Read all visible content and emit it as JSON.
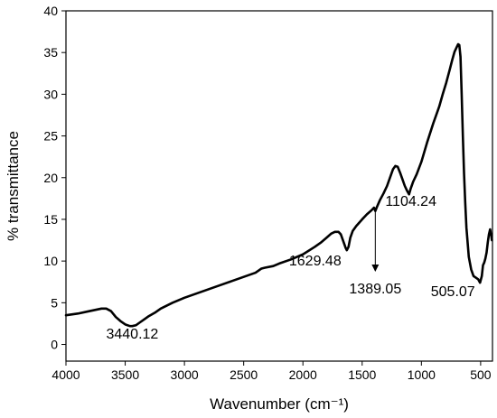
{
  "chart_data": {
    "type": "line",
    "xlabel": "Wavenumber (cm⁻¹)",
    "ylabel": "% transmittance",
    "xlim": [
      4000,
      400
    ],
    "ylim": [
      -2,
      40
    ],
    "x_reversed": true,
    "grid": false,
    "legend": "none",
    "xticks": [
      4000,
      3500,
      3000,
      2500,
      2000,
      1500,
      1000,
      500
    ],
    "yticks": [
      0,
      5,
      10,
      15,
      20,
      25,
      30,
      35,
      40
    ],
    "line_color": "#000000",
    "series": [
      {
        "points": [
          [
            4000,
            3.5
          ],
          [
            3900,
            3.7
          ],
          [
            3800,
            4.0
          ],
          [
            3700,
            4.3
          ],
          [
            3660,
            4.3
          ],
          [
            3620,
            4.0
          ],
          [
            3580,
            3.3
          ],
          [
            3540,
            2.8
          ],
          [
            3500,
            2.4
          ],
          [
            3460,
            2.2
          ],
          [
            3440,
            2.2
          ],
          [
            3410,
            2.3
          ],
          [
            3380,
            2.6
          ],
          [
            3340,
            3.0
          ],
          [
            3300,
            3.4
          ],
          [
            3250,
            3.8
          ],
          [
            3200,
            4.3
          ],
          [
            3100,
            5.0
          ],
          [
            3000,
            5.6
          ],
          [
            2900,
            6.1
          ],
          [
            2800,
            6.6
          ],
          [
            2700,
            7.1
          ],
          [
            2600,
            7.6
          ],
          [
            2500,
            8.1
          ],
          [
            2400,
            8.6
          ],
          [
            2370,
            8.9
          ],
          [
            2350,
            9.1
          ],
          [
            2320,
            9.2
          ],
          [
            2250,
            9.4
          ],
          [
            2200,
            9.7
          ],
          [
            2100,
            10.2
          ],
          [
            2000,
            10.8
          ],
          [
            1900,
            11.7
          ],
          [
            1850,
            12.2
          ],
          [
            1800,
            12.8
          ],
          [
            1760,
            13.3
          ],
          [
            1730,
            13.5
          ],
          [
            1700,
            13.5
          ],
          [
            1680,
            13.2
          ],
          [
            1660,
            12.4
          ],
          [
            1640,
            11.6
          ],
          [
            1629.48,
            11.3
          ],
          [
            1615,
            11.7
          ],
          [
            1600,
            12.8
          ],
          [
            1580,
            13.6
          ],
          [
            1550,
            14.2
          ],
          [
            1500,
            15.0
          ],
          [
            1460,
            15.6
          ],
          [
            1420,
            16.1
          ],
          [
            1400,
            16.4
          ],
          [
            1389.05,
            16.0
          ],
          [
            1375,
            16.5
          ],
          [
            1350,
            17.3
          ],
          [
            1320,
            18.1
          ],
          [
            1290,
            19.0
          ],
          [
            1260,
            20.2
          ],
          [
            1240,
            21.0
          ],
          [
            1220,
            21.4
          ],
          [
            1200,
            21.3
          ],
          [
            1180,
            20.6
          ],
          [
            1160,
            19.8
          ],
          [
            1140,
            19.0
          ],
          [
            1120,
            18.4
          ],
          [
            1104.24,
            18.0
          ],
          [
            1090,
            18.7
          ],
          [
            1070,
            19.5
          ],
          [
            1040,
            20.4
          ],
          [
            1000,
            21.9
          ],
          [
            950,
            24.3
          ],
          [
            900,
            26.5
          ],
          [
            850,
            28.5
          ],
          [
            820,
            30.0
          ],
          [
            790,
            31.4
          ],
          [
            760,
            33.0
          ],
          [
            740,
            34.1
          ],
          [
            720,
            35.1
          ],
          [
            700,
            35.7
          ],
          [
            690,
            36.0
          ],
          [
            680,
            35.9
          ],
          [
            670,
            34.5
          ],
          [
            660,
            30.0
          ],
          [
            650,
            25.0
          ],
          [
            640,
            20.5
          ],
          [
            630,
            17.0
          ],
          [
            620,
            14.0
          ],
          [
            600,
            10.5
          ],
          [
            580,
            9.0
          ],
          [
            560,
            8.2
          ],
          [
            540,
            8.0
          ],
          [
            520,
            7.8
          ],
          [
            505.07,
            7.4
          ],
          [
            490,
            8.2
          ],
          [
            480,
            9.5
          ],
          [
            470,
            9.8
          ],
          [
            460,
            10.3
          ],
          [
            450,
            11.0
          ],
          [
            440,
            12.2
          ],
          [
            430,
            13.2
          ],
          [
            420,
            13.8
          ],
          [
            410,
            13.0
          ],
          [
            405,
            12.5
          ]
        ]
      }
    ],
    "annotations": [
      {
        "text": "3440.12",
        "x": 3440.12
      },
      {
        "text": "1629.48",
        "x": 1629.48
      },
      {
        "text": "1389.05",
        "x": 1389.05,
        "arrow": true
      },
      {
        "text": "1104.24",
        "x": 1104.24
      },
      {
        "text": "505.07",
        "x": 505.07
      }
    ]
  }
}
